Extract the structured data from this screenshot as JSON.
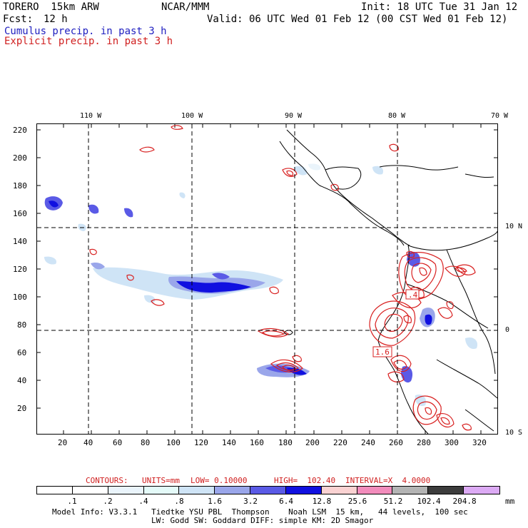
{
  "header": {
    "model": "TORERO  15km ARW",
    "org": "NCAR/MMM",
    "init": "Init: 18 UTC Tue 31 Jan 12",
    "fcst_label": "Fcst:",
    "fcst_value": "12 h",
    "valid": "Valid: 06 UTC Wed 01 Feb 12 (00 CST Wed 01 Feb 12)",
    "field1": "Cumulus precip. in past 3 h",
    "field2": "Explicit precip. in past 3 h"
  },
  "map": {
    "lon_labels": [
      "110 W",
      "100 W",
      "90 W",
      "80 W",
      "70 W"
    ],
    "lat_labels": [
      "10 N",
      "0",
      "10 S"
    ],
    "x_ticks": [
      "20",
      "40",
      "60",
      "80",
      "100",
      "120",
      "140",
      "160",
      "180",
      "200",
      "220",
      "240",
      "260",
      "280",
      "300",
      "320"
    ],
    "y_ticks": [
      "20",
      "40",
      "60",
      "80",
      "100",
      "120",
      "140",
      "160",
      "180",
      "200",
      "220"
    ],
    "contour_labels": [
      ".4",
      "1.6"
    ]
  },
  "contour_info": {
    "contours_label": "CONTOURS:",
    "units": "UNITS=mm",
    "low": "LOW= 0.10000",
    "high": "HIGH=  102.40",
    "interval": "INTERVAL=X  4.0000"
  },
  "colorbar": {
    "labels": [
      ".1",
      ".2",
      ".4",
      ".8",
      "1.6",
      "3.2",
      "6.4",
      "12.8",
      "25.6",
      "51.2",
      "102.4",
      "204.8"
    ],
    "unit": "mm",
    "colors": [
      "#ffffff",
      "#ffffff",
      "#eaf4fb",
      "#e4faf8",
      "#cfe4f6",
      "#9aa6ea",
      "#5a5ae6",
      "#1010e0",
      "#fad2d2",
      "#f28cbc",
      "#b4b4b4",
      "#3c3c3c",
      "#dcaaf4"
    ]
  },
  "footer": {
    "line1": "Model Info: V3.3.1   Tiedtke YSU PBL  Thompson    Noah LSM  15 km,   44 levels,  100 sec",
    "line2": "LW: Godd SW: Goddard DIFF: simple KM: 2D Smagor"
  }
}
